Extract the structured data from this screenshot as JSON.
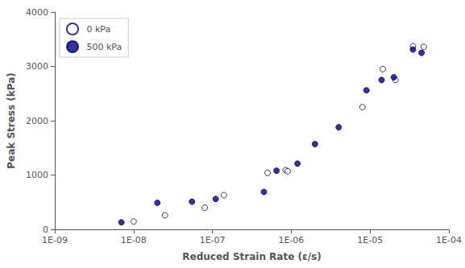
{
  "chart_data": {
    "type": "scatter",
    "xlabel": "Reduced Strain Rate (ε/s)",
    "ylabel": "Peak Stress (kPa)",
    "log": "x",
    "grid": false,
    "legend": "upper left",
    "xlim": [
      1e-09,
      0.0001
    ],
    "ylim": [
      0,
      4000
    ],
    "xticks": [
      {
        "value": 1e-09,
        "label": "1E-09"
      },
      {
        "value": 1e-08,
        "label": "1E-08"
      },
      {
        "value": 1e-07,
        "label": "1E-07"
      },
      {
        "value": 1e-06,
        "label": "1E-06"
      },
      {
        "value": 1e-05,
        "label": "1E-05"
      },
      {
        "value": 0.0001,
        "label": "1E-04"
      }
    ],
    "yticks": [
      0,
      1000,
      2000,
      3000,
      4000
    ],
    "series": [
      {
        "name": "0 kPa",
        "color": "#000080",
        "marker": "open_circle",
        "x": [
          1e-08,
          2.5e-08,
          8e-08,
          1.4e-07,
          5e-07,
          8.5e-07,
          9e-07,
          8e-06,
          1.45e-05,
          2.1e-05,
          3.5e-05,
          4.8e-05
        ],
        "values": [
          145,
          260,
          400,
          630,
          1040,
          1090,
          1070,
          2250,
          2950,
          2750,
          3370,
          3360
        ]
      },
      {
        "name": "500 kPa",
        "color": "#000080",
        "marker": "circle",
        "x": [
          7e-09,
          2e-08,
          5.5e-08,
          1.1e-07,
          4.5e-07,
          6.5e-07,
          1.2e-06,
          2e-06,
          4e-06,
          9e-06,
          1.4e-05,
          2e-05,
          3.5e-05,
          4.5e-05
        ],
        "values": [
          130,
          490,
          510,
          560,
          690,
          1080,
          1210,
          1570,
          1880,
          2560,
          2750,
          2800,
          3310,
          3250
        ]
      }
    ]
  }
}
